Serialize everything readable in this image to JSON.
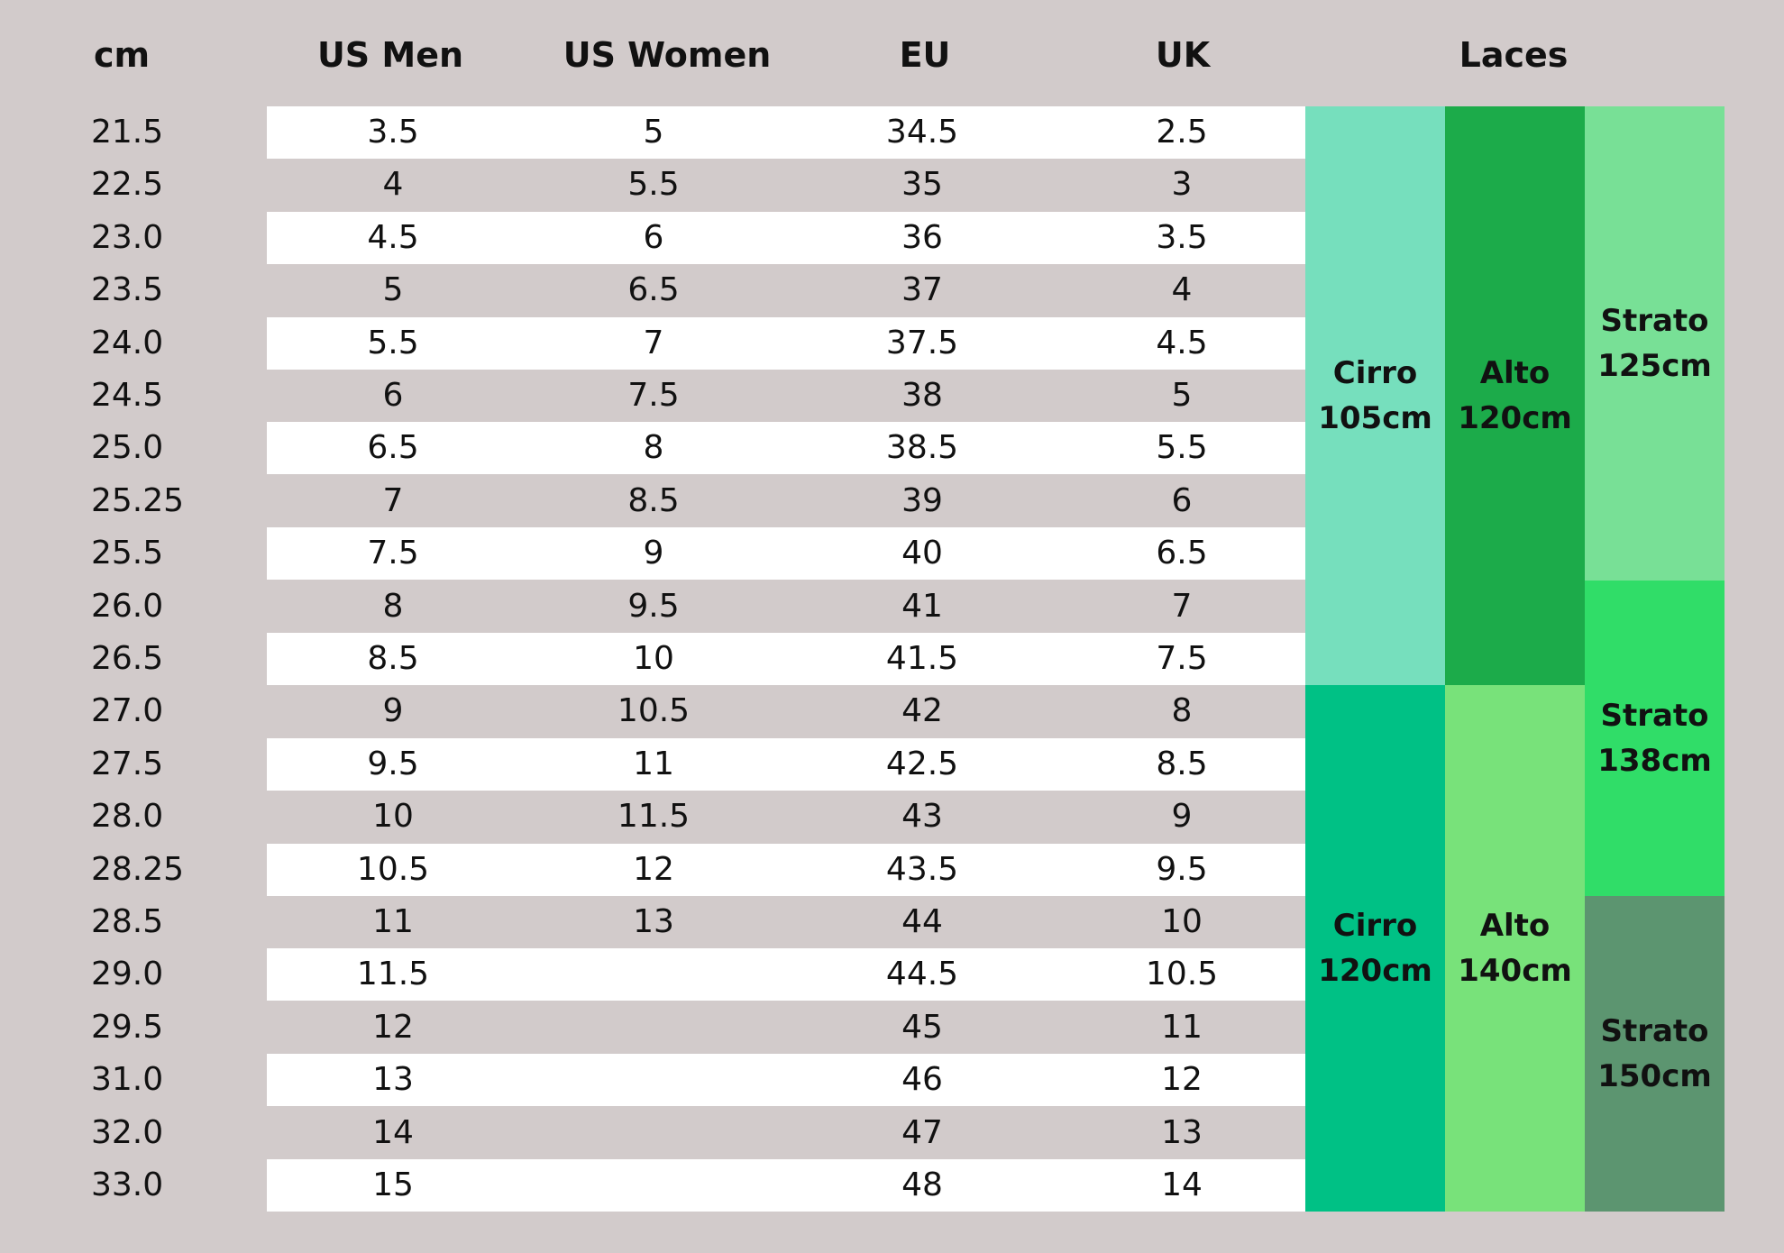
{
  "headers": {
    "cm": "cm",
    "us_men": "US Men",
    "us_women": "US Women",
    "eu": "EU",
    "uk": "UK",
    "laces": "Laces"
  },
  "rows": [
    {
      "cm": "21.5",
      "us_men": "3.5",
      "us_women": "5",
      "eu": "34.5",
      "uk": "2.5"
    },
    {
      "cm": "22.5",
      "us_men": "4",
      "us_women": "5.5",
      "eu": "35",
      "uk": "3"
    },
    {
      "cm": "23.0",
      "us_men": "4.5",
      "us_women": "6",
      "eu": "36",
      "uk": "3.5"
    },
    {
      "cm": "23.5",
      "us_men": "5",
      "us_women": "6.5",
      "eu": "37",
      "uk": "4"
    },
    {
      "cm": "24.0",
      "us_men": "5.5",
      "us_women": "7",
      "eu": "37.5",
      "uk": "4.5"
    },
    {
      "cm": "24.5",
      "us_men": "6",
      "us_women": "7.5",
      "eu": "38",
      "uk": "5"
    },
    {
      "cm": "25.0",
      "us_men": "6.5",
      "us_women": "8",
      "eu": "38.5",
      "uk": "5.5"
    },
    {
      "cm": "25.25",
      "us_men": "7",
      "us_women": "8.5",
      "eu": "39",
      "uk": "6"
    },
    {
      "cm": "25.5",
      "us_men": "7.5",
      "us_women": "9",
      "eu": "40",
      "uk": "6.5"
    },
    {
      "cm": "26.0",
      "us_men": "8",
      "us_women": "9.5",
      "eu": "41",
      "uk": "7"
    },
    {
      "cm": "26.5",
      "us_men": "8.5",
      "us_women": "10",
      "eu": "41.5",
      "uk": "7.5"
    },
    {
      "cm": "27.0",
      "us_men": "9",
      "us_women": "10.5",
      "eu": "42",
      "uk": "8"
    },
    {
      "cm": "27.5",
      "us_men": "9.5",
      "us_women": "11",
      "eu": "42.5",
      "uk": "8.5"
    },
    {
      "cm": "28.0",
      "us_men": "10",
      "us_women": "11.5",
      "eu": "43",
      "uk": "9"
    },
    {
      "cm": "28.25",
      "us_men": "10.5",
      "us_women": "12",
      "eu": "43.5",
      "uk": "9.5"
    },
    {
      "cm": "28.5",
      "us_men": "11",
      "us_women": "13",
      "eu": "44",
      "uk": "10"
    },
    {
      "cm": "29.0",
      "us_men": "11.5",
      "us_women": "",
      "eu": "44.5",
      "uk": "10.5"
    },
    {
      "cm": "29.5",
      "us_men": "12",
      "us_women": "",
      "eu": "45",
      "uk": "11"
    },
    {
      "cm": "31.0",
      "us_men": "13",
      "us_women": "",
      "eu": "46",
      "uk": "12"
    },
    {
      "cm": "32.0",
      "us_men": "14",
      "us_women": "",
      "eu": "47",
      "uk": "13"
    },
    {
      "cm": "33.0",
      "us_men": "15",
      "us_women": "",
      "eu": "48",
      "uk": "14"
    }
  ],
  "laces": [
    {
      "model": "Cirro",
      "length": "105cm",
      "column": 0,
      "from_row": 0,
      "to_row": 10,
      "color": "#76dfbd"
    },
    {
      "model": "Cirro",
      "length": "120cm",
      "column": 0,
      "from_row": 11,
      "to_row": 20,
      "color": "#00c185"
    },
    {
      "model": "Alto",
      "length": "120cm",
      "column": 1,
      "from_row": 0,
      "to_row": 10,
      "color": "#1cab4a"
    },
    {
      "model": "Alto",
      "length": "140cm",
      "column": 1,
      "from_row": 11,
      "to_row": 20,
      "color": "#78e27a"
    },
    {
      "model": "Strato",
      "length": "125cm",
      "column": 2,
      "from_row": 0,
      "to_row": 8,
      "color": "#78e096"
    },
    {
      "model": "Strato",
      "length": "138cm",
      "column": 2,
      "from_row": 9,
      "to_row": 14,
      "color": "#30dd68"
    },
    {
      "model": "Strato",
      "length": "150cm",
      "column": 2,
      "from_row": 15,
      "to_row": 20,
      "color": "#5c9570"
    }
  ]
}
